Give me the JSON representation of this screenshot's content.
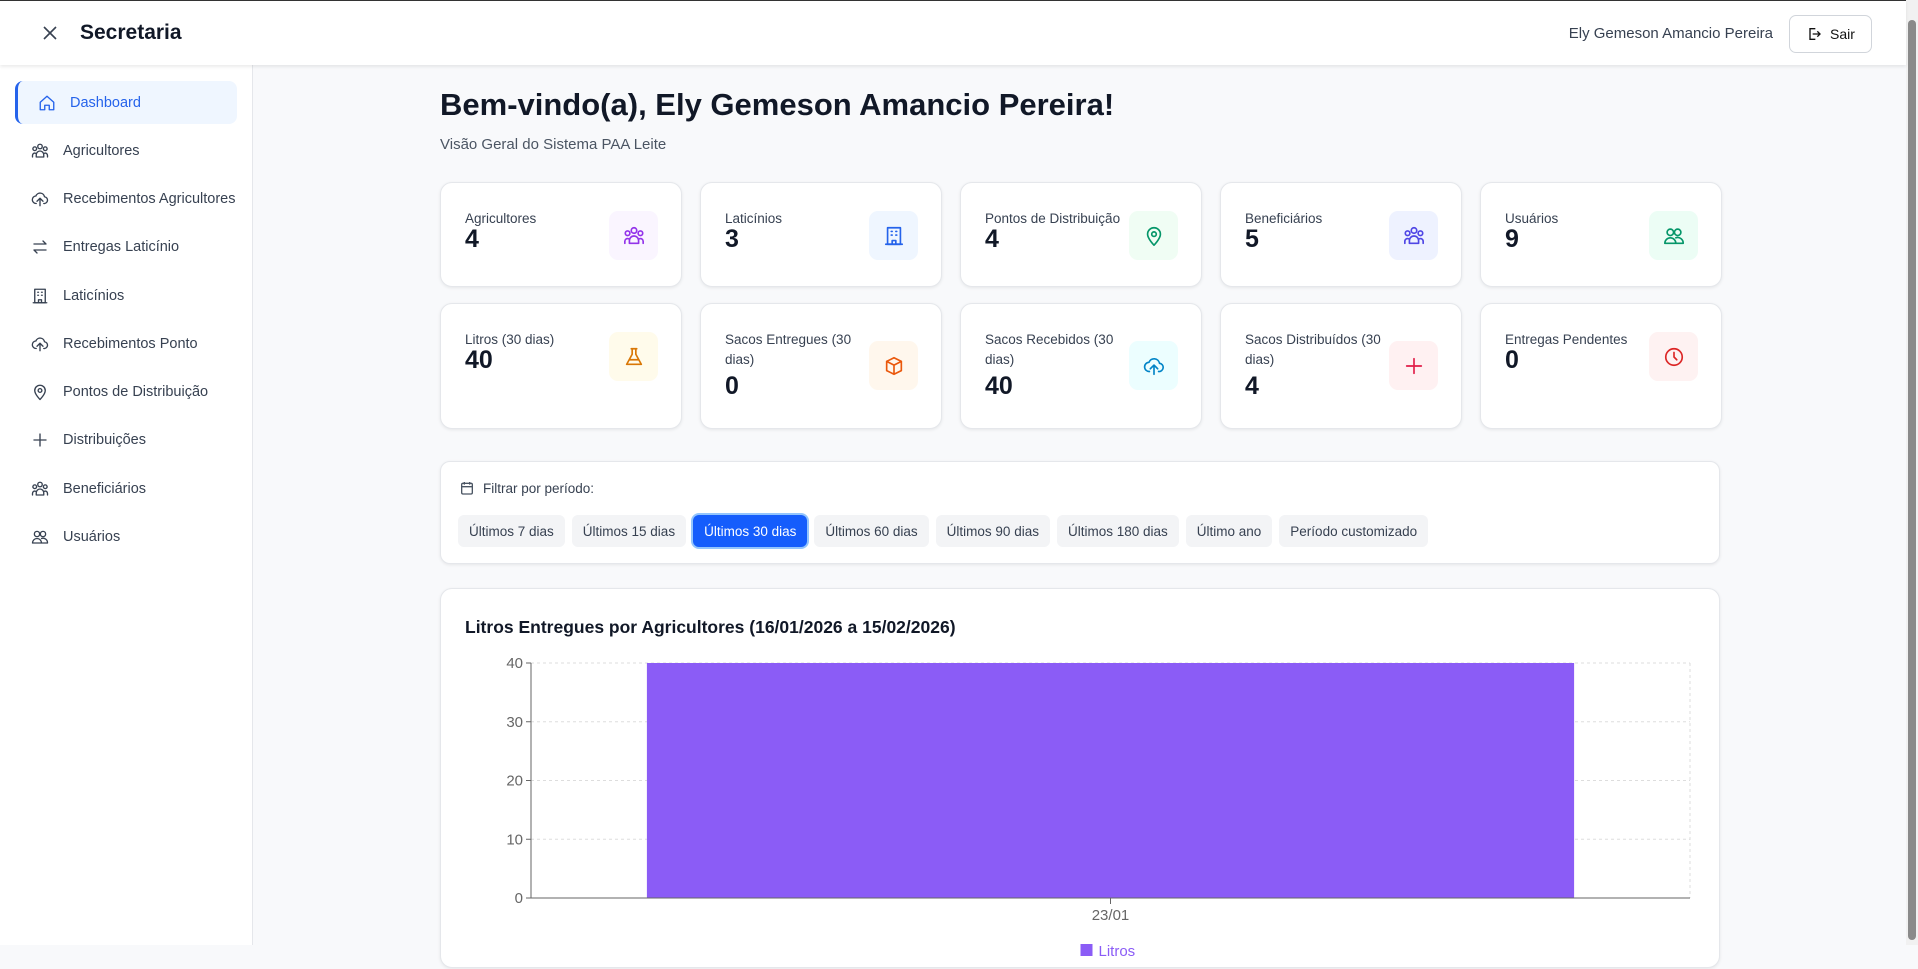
{
  "header": {
    "title": "Secretaria",
    "user": "Ely Gemeson Amancio Pereira",
    "logout": "Sair"
  },
  "sidebar": {
    "items": [
      {
        "label": "Dashboard",
        "icon": "home-icon",
        "active": true
      },
      {
        "label": "Agricultores",
        "icon": "users-icon"
      },
      {
        "label": "Recebimentos Agricultores",
        "icon": "cloud-upload-icon"
      },
      {
        "label": "Entregas Laticínio",
        "icon": "arrows-exchange-icon"
      },
      {
        "label": "Laticínios",
        "icon": "building-icon"
      },
      {
        "label": "Recebimentos Ponto",
        "icon": "cloud-upload-icon"
      },
      {
        "label": "Pontos de Distribuição",
        "icon": "map-pin-icon"
      },
      {
        "label": "Distribuições",
        "icon": "plus-icon"
      },
      {
        "label": "Beneficiários",
        "icon": "users-icon"
      },
      {
        "label": "Usuários",
        "icon": "user-group-icon"
      }
    ]
  },
  "page": {
    "title": "Bem-vindo(a), Ely Gemeson Amancio Pereira!",
    "subtitle": "Visão Geral do Sistema PAA Leite"
  },
  "stats": [
    {
      "label": "Agricultores",
      "value": "4",
      "icon": "users-icon",
      "color": "#9333ea",
      "bg": "#faf5ff"
    },
    {
      "label": "Laticínios",
      "value": "3",
      "icon": "building-icon",
      "color": "#2563eb",
      "bg": "#eff6ff"
    },
    {
      "label": "Pontos de Distribuição",
      "value": "4",
      "icon": "map-pin-icon",
      "color": "#059669",
      "bg": "#f0fdf4"
    },
    {
      "label": "Beneficiários",
      "value": "5",
      "icon": "users-icon",
      "color": "#4f46e5",
      "bg": "#eef2ff"
    },
    {
      "label": "Usuários",
      "value": "9",
      "icon": "user-group-icon",
      "color": "#059669",
      "bg": "#ecfdf5"
    },
    {
      "label": "Litros (30 dias)",
      "value": "40",
      "icon": "flask-icon",
      "color": "#d97706",
      "bg": "#fffbeb"
    },
    {
      "label": "Sacos Entregues (30 dias)",
      "value": "0",
      "icon": "package-icon",
      "color": "#ea580c",
      "bg": "#fff7ed"
    },
    {
      "label": "Sacos Recebidos (30 dias)",
      "value": "40",
      "icon": "cloud-upload-icon",
      "color": "#0284c7",
      "bg": "#ecfeff"
    },
    {
      "label": "Sacos Distribuídos (30 dias)",
      "value": "4",
      "icon": "plus-icon",
      "color": "#e11d48",
      "bg": "#fff1f2"
    },
    {
      "label": "Entregas Pendentes",
      "value": "0",
      "icon": "clock-icon",
      "color": "#dc2626",
      "bg": "#fef2f2"
    }
  ],
  "filter": {
    "label": "Filtrar por período:",
    "options": [
      "Últimos 7 dias",
      "Últimos 15 dias",
      "Últimos 30 dias",
      "Últimos 60 dias",
      "Últimos 90 dias",
      "Últimos 180 dias",
      "Último ano",
      "Período customizado"
    ],
    "selected": "Últimos 30 dias"
  },
  "chart_data": {
    "type": "bar",
    "title": "Litros Entregues por Agricultores (16/01/2026 a 15/02/2026)",
    "categories": [
      "23/01"
    ],
    "series": [
      {
        "name": "Litros",
        "values": [
          40
        ],
        "color": "#8b5cf6"
      }
    ],
    "ylim": [
      0,
      40
    ],
    "yticks": [
      0,
      10,
      20,
      30,
      40
    ],
    "grid": true,
    "legend": "bottom"
  }
}
